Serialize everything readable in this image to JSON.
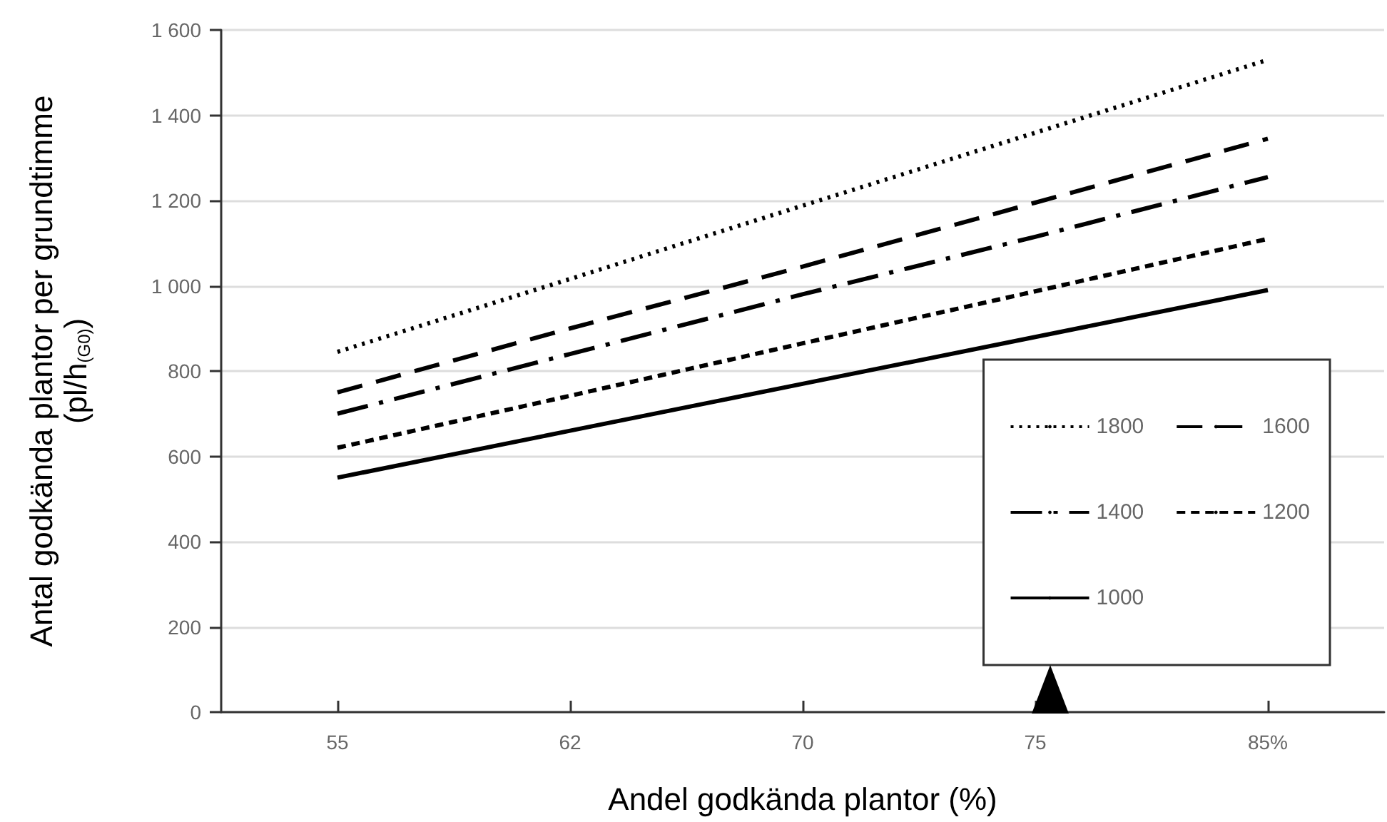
{
  "chart_data": {
    "type": "line",
    "xlabel": "Andel godkända plantor (%)",
    "ylabel": "Antal godkända plantor per grundtimme\n(pl/h$_{(G0)}$)",
    "categories": [
      "55",
      "62",
      "70",
      "75",
      "85%"
    ],
    "series": [
      {
        "name": "1800",
        "color": "#000000",
        "line_style": "dotted",
        "values": [
          845,
          1016,
          1188,
          1359,
          1530
        ]
      },
      {
        "name": "1600",
        "color": "#000000",
        "line_style": "longdash",
        "values": [
          750,
          900,
          1045,
          1195,
          1345
        ]
      },
      {
        "name": "1400",
        "color": "#000000",
        "line_style": "dashdot",
        "values": [
          700,
          840,
          980,
          1115,
          1255
        ]
      },
      {
        "name": "1200",
        "color": "#000000",
        "line_style": "dashed",
        "values": [
          620,
          742,
          865,
          987,
          1110
        ]
      },
      {
        "name": "1000",
        "color": "#000000",
        "line_style": "solid",
        "values": [
          550,
          660,
          770,
          880,
          990
        ]
      }
    ],
    "ylim": [
      0,
      1600
    ],
    "yticks": [
      0,
      200,
      400,
      600,
      800,
      {
        "value": 1000,
        "label": "1 000"
      },
      {
        "value": 1200,
        "label": "1 200"
      },
      {
        "value": 1400,
        "label": "1 400"
      },
      {
        "value": 1600,
        "label": "1 600"
      }
    ],
    "grid": "y",
    "legend": "bottom right",
    "marker": "none"
  }
}
